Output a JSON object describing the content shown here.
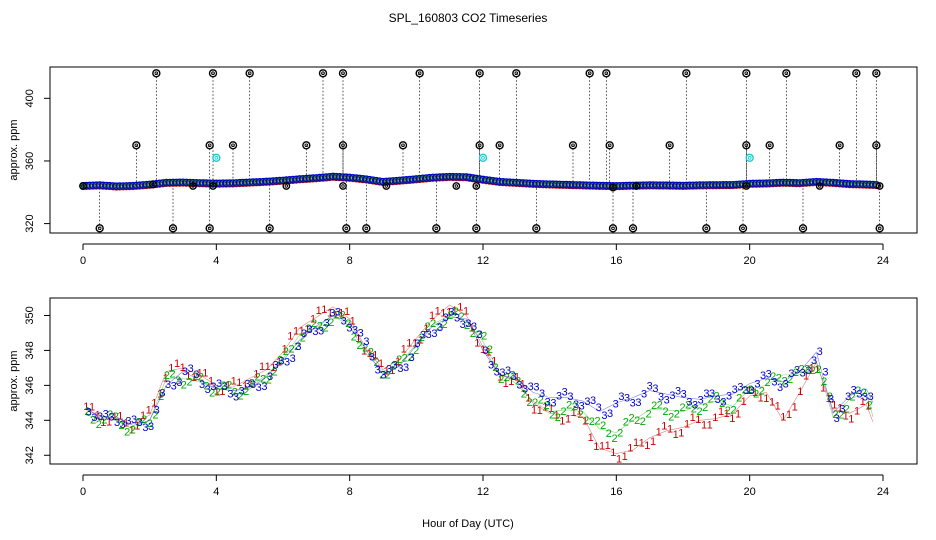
{
  "chart_data": {
    "title": "SPL_160803  CO2 Timeseries",
    "xlabel": "Hour of Day (UTC)",
    "x_ticks": [
      0,
      4,
      8,
      12,
      16,
      20,
      24
    ],
    "colors": {
      "c1": "#cc0000",
      "c2": "#00aa00",
      "c3": "#0000cc",
      "cal": "#000000",
      "cyan": "#22c4d4"
    },
    "top": {
      "type": "scatter",
      "ylabel": "approx. ppm",
      "ylim": [
        314,
        420
      ],
      "y_ticks": [
        320,
        360,
        400
      ],
      "baseline": {
        "x": [
          0.0,
          0.5,
          1.0,
          1.5,
          2.0,
          2.5,
          3.0,
          3.5,
          4.0,
          4.5,
          5.0,
          5.5,
          6.0,
          6.5,
          7.0,
          7.5,
          8.0,
          8.5,
          9.0,
          9.5,
          10.0,
          10.5,
          11.0,
          11.5,
          12.0,
          12.5,
          13.0,
          13.5,
          14.0,
          14.5,
          15.0,
          15.5,
          16.0,
          16.5,
          17.0,
          17.5,
          18.0,
          18.5,
          19.0,
          19.5,
          20.0,
          20.5,
          21.0,
          21.5,
          22.0,
          22.5,
          23.0,
          23.5,
          23.8
        ],
        "y": [
          344.2,
          344.6,
          343.9,
          344.2,
          345.0,
          346.2,
          346.4,
          346.0,
          345.7,
          345.9,
          346.4,
          346.9,
          347.6,
          348.5,
          349.2,
          350.1,
          349.5,
          348.4,
          346.8,
          347.6,
          348.5,
          349.5,
          350.0,
          349.8,
          348.2,
          346.8,
          346.2,
          345.6,
          345.2,
          344.9,
          344.6,
          344.3,
          344.1,
          344.4,
          344.6,
          344.5,
          344.3,
          344.6,
          344.7,
          344.8,
          345.6,
          345.8,
          346.3,
          346.0,
          346.8,
          346.2,
          345.4,
          345.1,
          344.8
        ]
      },
      "high_points": {
        "x": [
          2.2,
          3.9,
          5.0,
          7.2,
          7.8,
          10.1,
          11.9,
          13.0,
          15.2,
          15.7,
          18.1,
          19.9,
          21.1,
          23.2,
          23.8
        ],
        "y": [
          416,
          416,
          416,
          416,
          416,
          416,
          416,
          416,
          416,
          416,
          416,
          416,
          416,
          416,
          416
        ]
      },
      "mid_points": {
        "x": [
          1.6,
          3.8,
          4.5,
          6.7,
          7.8,
          9.6,
          11.9,
          12.5,
          14.7,
          15.8,
          17.6,
          19.9,
          20.6,
          22.7,
          23.8
        ],
        "y": [
          370,
          370,
          370,
          370,
          370,
          370,
          370,
          370,
          370,
          370,
          370,
          370,
          370,
          370,
          370
        ]
      },
      "low_points": {
        "x": [
          0.5,
          2.7,
          3.8,
          5.6,
          7.9,
          8.5,
          10.6,
          11.8,
          13.6,
          15.9,
          16.5,
          18.7,
          19.8,
          21.6,
          23.9
        ],
        "y": [
          317,
          317,
          317,
          317,
          317,
          317,
          317,
          317,
          317,
          317,
          317,
          317,
          317,
          317,
          317
        ]
      },
      "cyan_points": {
        "x": [
          4.0,
          12.0,
          20.0
        ],
        "y": [
          362,
          362,
          362
        ]
      },
      "black_base_points": {
        "x": [
          0.0,
          2.1,
          3.3,
          3.9,
          6.1,
          7.8,
          9.1,
          11.2,
          11.8,
          15.9,
          16.6,
          19.9,
          22.1,
          23.9
        ],
        "y": [
          344,
          345,
          344,
          344,
          344,
          344,
          344,
          344,
          344,
          343,
          344,
          344,
          344,
          344
        ]
      }
    },
    "bottom": {
      "type": "line",
      "ylabel": "approx. ppm",
      "ylim": [
        341.5,
        351
      ],
      "y_ticks": [
        342,
        344,
        346,
        348,
        350
      ],
      "series": [
        {
          "name": "1",
          "color": "#cc0000",
          "x": [
            0.1,
            0.5,
            1.0,
            1.5,
            2.0,
            2.5,
            3.0,
            3.5,
            4.0,
            4.5,
            5.0,
            5.5,
            6.0,
            6.5,
            7.0,
            7.5,
            8.0,
            8.5,
            9.0,
            9.5,
            10.0,
            10.5,
            11.0,
            11.5,
            12.0,
            12.5,
            13.0,
            13.5,
            14.0,
            14.5,
            15.0,
            15.5,
            16.0,
            16.5,
            17.0,
            17.5,
            18.0,
            18.5,
            19.0,
            19.5,
            20.0,
            20.5,
            21.0,
            21.5,
            22.0,
            22.5,
            23.0,
            23.5,
            23.7
          ],
          "y": [
            344.6,
            344.3,
            344.0,
            343.8,
            344.3,
            346.8,
            347.0,
            346.6,
            346.0,
            345.9,
            346.4,
            346.9,
            347.9,
            349.3,
            349.9,
            350.5,
            349.8,
            348.1,
            346.9,
            347.5,
            348.7,
            349.8,
            350.6,
            350.0,
            348.2,
            346.6,
            346.3,
            345.0,
            344.4,
            344.3,
            344.2,
            342.4,
            342.1,
            342.3,
            343.0,
            343.4,
            343.6,
            344.0,
            344.1,
            344.4,
            345.4,
            345.6,
            344.0,
            345.6,
            347.3,
            344.6,
            344.4,
            344.9,
            343.9
          ]
        },
        {
          "name": "2",
          "color": "#00aa00",
          "x": [
            0.1,
            0.5,
            1.0,
            1.5,
            2.0,
            2.5,
            3.0,
            3.5,
            4.0,
            4.5,
            5.0,
            5.5,
            6.0,
            6.5,
            7.0,
            7.5,
            8.0,
            8.5,
            9.0,
            9.5,
            10.0,
            10.5,
            11.0,
            11.5,
            12.0,
            12.5,
            13.0,
            13.5,
            14.0,
            14.5,
            15.0,
            15.5,
            16.0,
            16.5,
            17.0,
            17.5,
            18.0,
            18.5,
            19.0,
            19.5,
            20.0,
            20.5,
            21.0,
            21.5,
            22.0,
            22.5,
            23.0,
            23.5,
            23.7
          ],
          "y": [
            344.3,
            344.1,
            344.0,
            343.5,
            344.0,
            346.4,
            346.4,
            346.2,
            345.8,
            345.7,
            345.9,
            346.6,
            347.5,
            348.9,
            349.3,
            350.0,
            349.4,
            347.8,
            346.8,
            347.2,
            348.4,
            349.5,
            350.0,
            349.7,
            348.5,
            346.7,
            346.1,
            345.1,
            344.5,
            344.6,
            344.5,
            343.5,
            343.3,
            344.0,
            344.6,
            344.6,
            344.5,
            344.9,
            345.1,
            344.8,
            345.8,
            346.0,
            346.6,
            346.6,
            347.4,
            344.2,
            345.2,
            345.6,
            344.2
          ]
        },
        {
          "name": "3",
          "color": "#0000cc",
          "x": [
            0.1,
            0.5,
            1.0,
            1.5,
            2.0,
            2.5,
            3.0,
            3.5,
            4.0,
            4.5,
            5.0,
            5.5,
            6.0,
            6.5,
            7.0,
            7.5,
            8.0,
            8.5,
            9.0,
            9.5,
            10.0,
            10.5,
            11.0,
            11.5,
            12.0,
            12.5,
            13.0,
            13.5,
            14.0,
            14.5,
            15.0,
            15.5,
            16.0,
            16.5,
            17.0,
            17.5,
            18.0,
            18.5,
            19.0,
            19.5,
            20.0,
            20.5,
            21.0,
            21.5,
            22.0,
            22.5,
            23.0,
            23.5,
            23.7
          ],
          "y": [
            344.8,
            344.0,
            344.2,
            343.7,
            344.0,
            346.0,
            346.8,
            346.3,
            345.8,
            345.7,
            345.8,
            346.5,
            347.4,
            348.6,
            349.4,
            350.0,
            349.6,
            348.0,
            346.6,
            347.1,
            348.3,
            349.4,
            349.9,
            349.8,
            348.0,
            346.6,
            346.4,
            345.6,
            345.3,
            345.3,
            345.1,
            344.5,
            345.0,
            345.3,
            345.7,
            345.5,
            345.3,
            345.2,
            345.4,
            345.5,
            346.1,
            346.4,
            346.2,
            346.8,
            347.9,
            344.4,
            345.4,
            345.8,
            345.0
          ]
        }
      ]
    }
  }
}
